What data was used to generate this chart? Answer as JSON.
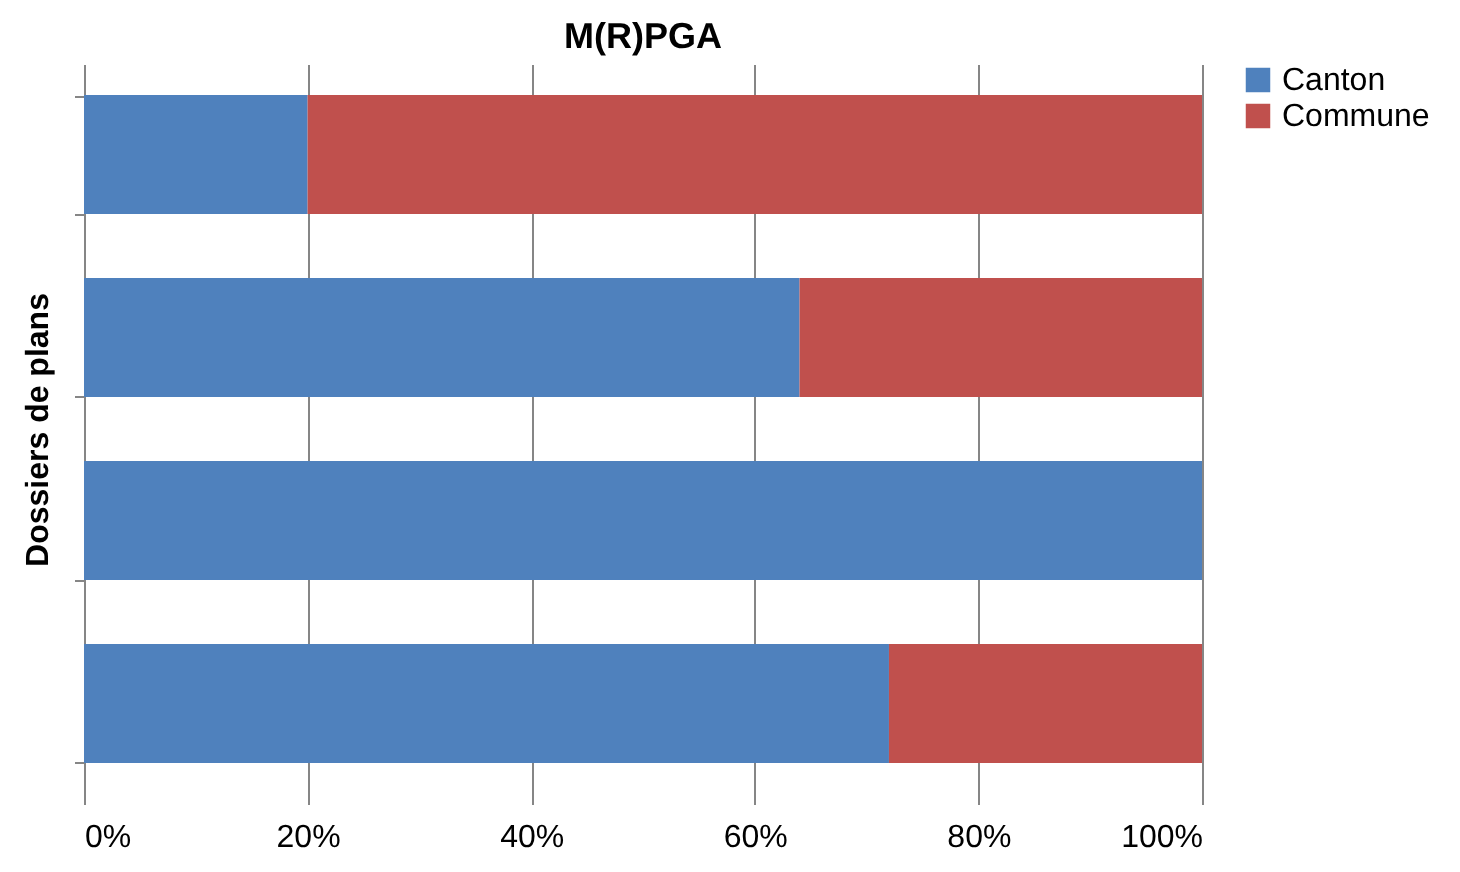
{
  "chart_data": {
    "type": "bar",
    "title": "M(R)PGA",
    "ylabel": "Dossiers de plans",
    "orientation": "horizontal",
    "stacked": true,
    "categories": [
      null,
      null,
      null,
      null
    ],
    "series": [
      {
        "name": "Canton",
        "color": "#4f81bd",
        "values": [
          20,
          64,
          100,
          72
        ]
      },
      {
        "name": "Commune",
        "color": "#c0504d",
        "values": [
          80,
          36,
          0,
          28
        ]
      }
    ],
    "xlim": [
      0,
      100
    ],
    "xticks": [
      {
        "value": 0,
        "label": "0%"
      },
      {
        "value": 20,
        "label": "20%"
      },
      {
        "value": 40,
        "label": "40%"
      },
      {
        "value": 60,
        "label": "60%"
      },
      {
        "value": 80,
        "label": "80%"
      },
      {
        "value": 100,
        "label": "100%"
      }
    ],
    "grid": "x",
    "legend": "right",
    "tick_labels": "x"
  }
}
